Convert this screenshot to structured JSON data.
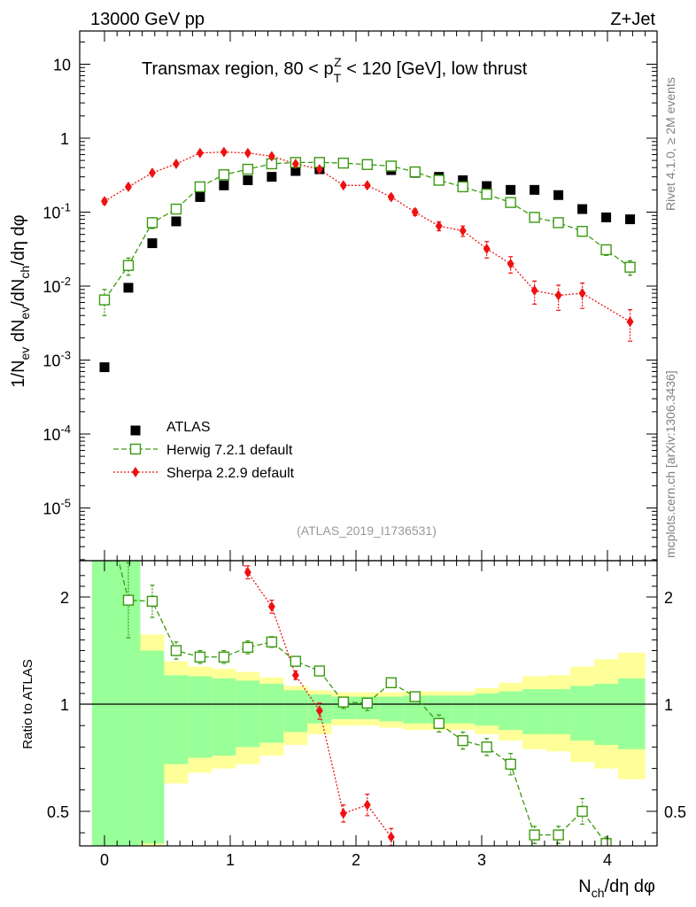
{
  "header": {
    "left": "13000 GeV pp",
    "right": "Z+Jet"
  },
  "plot_title": {
    "prefix": "Transmax region, 80 < p",
    "sup": "Z",
    "sub": "T",
    "suffix": " < 120 [GeV], low thrust"
  },
  "side_text": {
    "top": "Rivet 4.1.0, ≥ 2M events",
    "bottom": "mcplots.cern.ch [arXiv:1306.3436]"
  },
  "analysis_tag": "(ATLAS_2019_I1736531)",
  "colors": {
    "atlas": "#000000",
    "herwig": "#3a9a10",
    "sherpa": "#ee1111",
    "band_stat": "#99ff99",
    "band_total": "#ffff99"
  },
  "chart_data": [
    {
      "type": "scatter",
      "title": "Transmax region, 80 < pT^Z < 120 [GeV], low thrust",
      "ylabel": "1/N_ev dN_ev/dN_ch/dη dφ",
      "yscale": "log",
      "xlim": [
        -0.1,
        4.3
      ],
      "ylim": [
        3e-06,
        30
      ],
      "y_ticks": [
        "10^-5",
        "10^-4",
        "10^-3",
        "10^-2",
        "10^-1",
        "1",
        "10"
      ],
      "legend": [
        "ATLAS",
        "Herwig 7.2.1 default",
        "Sherpa 2.2.9 default"
      ],
      "legend_position": "lower-left",
      "series": [
        {
          "name": "ATLAS",
          "marker": "square",
          "x": [
            0.0,
            0.19,
            0.38,
            0.57,
            0.76,
            0.95,
            1.14,
            1.33,
            1.52,
            1.71,
            1.9,
            2.09,
            2.28,
            2.47,
            2.66,
            2.85,
            3.04,
            3.23,
            3.42,
            3.61,
            3.8,
            3.99,
            4.18
          ],
          "y": [
            0.0008,
            0.0095,
            0.038,
            0.075,
            0.16,
            0.23,
            0.27,
            0.3,
            0.36,
            0.38,
            0.46,
            0.44,
            0.37,
            0.34,
            0.3,
            0.27,
            0.225,
            0.2,
            0.2,
            0.17,
            0.11,
            0.085,
            0.08
          ]
        },
        {
          "name": "Herwig 7.2.1 default",
          "marker": "open-square",
          "line": "dashed",
          "x": [
            0.0,
            0.19,
            0.38,
            0.57,
            0.76,
            0.95,
            1.14,
            1.33,
            1.52,
            1.71,
            1.9,
            2.09,
            2.28,
            2.47,
            2.66,
            2.85,
            3.04,
            3.23,
            3.42,
            3.61,
            3.8,
            3.99,
            4.18
          ],
          "y": [
            0.0065,
            0.019,
            0.072,
            0.11,
            0.22,
            0.32,
            0.38,
            0.45,
            0.47,
            0.47,
            0.46,
            0.44,
            0.42,
            0.35,
            0.27,
            0.22,
            0.175,
            0.135,
            0.085,
            0.072,
            0.055,
            0.031,
            0.018
          ],
          "yerr": [
            0.0025,
            0.005,
            0.012,
            0.015,
            0.02,
            0.02,
            0.02,
            0.02,
            0.02,
            0.02,
            0.02,
            0.02,
            0.02,
            0.02,
            0.02,
            0.02,
            0.015,
            0.012,
            0.01,
            0.008,
            0.007,
            0.005,
            0.004
          ]
        },
        {
          "name": "Sherpa 2.2.9 default",
          "marker": "diamond",
          "line": "dotted",
          "x": [
            0.0,
            0.19,
            0.38,
            0.57,
            0.76,
            0.95,
            1.14,
            1.33,
            1.52,
            1.71,
            1.9,
            2.09,
            2.28,
            2.47,
            2.66,
            2.85,
            3.04,
            3.23,
            3.42,
            3.61,
            3.8,
            3.99,
            4.18
          ],
          "y": [
            0.14,
            0.22,
            0.34,
            0.45,
            0.63,
            0.65,
            0.63,
            0.57,
            0.45,
            0.38,
            0.23,
            0.23,
            0.16,
            0.1,
            0.065,
            0.056,
            0.032,
            0.02,
            0.0087,
            0.0075,
            0.008,
            null,
            0.0033
          ],
          "yerr": [
            0.012,
            0.015,
            0.02,
            0.02,
            0.03,
            0.03,
            0.03,
            0.03,
            0.02,
            0.02,
            0.015,
            0.015,
            0.012,
            0.01,
            0.009,
            0.009,
            0.008,
            0.005,
            0.003,
            0.0028,
            0.003,
            null,
            0.0015
          ]
        }
      ]
    },
    {
      "type": "scatter",
      "ylabel": "Ratio to ATLAS",
      "xlabel": "N_ch/dη dφ",
      "xlim": [
        -0.1,
        4.3
      ],
      "ylim": [
        0.35,
        2.3
      ],
      "x_ticks": [
        "0",
        "1",
        "2",
        "3",
        "4"
      ],
      "y_ticks": [
        "0.5",
        "1",
        "2"
      ],
      "bands": {
        "edges": [
          -0.1,
          0.095,
          0.285,
          0.475,
          0.665,
          0.855,
          1.045,
          1.235,
          1.425,
          1.615,
          1.805,
          1.995,
          2.185,
          2.375,
          2.565,
          2.755,
          2.945,
          3.135,
          3.325,
          3.515,
          3.705,
          3.895,
          4.085,
          4.3
        ],
        "stat_low": [
          0.2,
          0.2,
          0.35,
          0.72,
          0.75,
          0.76,
          0.8,
          0.82,
          0.87,
          0.91,
          0.93,
          0.93,
          0.92,
          0.91,
          0.91,
          0.91,
          0.9,
          0.88,
          0.86,
          0.86,
          0.83,
          0.81,
          0.79
        ],
        "stat_high": [
          2.5,
          2.4,
          1.5,
          1.27,
          1.26,
          1.24,
          1.22,
          1.19,
          1.13,
          1.09,
          1.07,
          1.07,
          1.07,
          1.08,
          1.08,
          1.08,
          1.1,
          1.12,
          1.14,
          1.14,
          1.17,
          1.19,
          1.24
        ],
        "total_low": [
          0.2,
          0.2,
          0.2,
          0.63,
          0.68,
          0.7,
          0.72,
          0.76,
          0.81,
          0.86,
          0.9,
          0.9,
          0.89,
          0.88,
          0.88,
          0.88,
          0.86,
          0.83,
          0.79,
          0.78,
          0.73,
          0.7,
          0.65
        ],
        "total_high": [
          2.5,
          2.4,
          1.65,
          1.4,
          1.35,
          1.33,
          1.3,
          1.25,
          1.17,
          1.13,
          1.11,
          1.11,
          1.11,
          1.12,
          1.12,
          1.12,
          1.15,
          1.2,
          1.26,
          1.27,
          1.35,
          1.42,
          1.48
        ]
      },
      "series": [
        {
          "name": "Herwig / ATLAS",
          "marker": "open-square",
          "line": "dashed",
          "x": [
            0.19,
            0.38,
            0.57,
            0.76,
            0.95,
            1.14,
            1.33,
            1.52,
            1.71,
            1.9,
            2.09,
            2.28,
            2.47,
            2.66,
            2.85,
            3.04,
            3.23,
            3.42,
            3.61,
            3.8,
            3.99
          ],
          "y": [
            1.97,
            1.96,
            1.5,
            1.44,
            1.44,
            1.53,
            1.58,
            1.4,
            1.31,
            1.02,
            1.01,
            1.2,
            1.07,
            0.91,
            0.83,
            0.8,
            0.72,
            0.39,
            0.39,
            0.5,
            0.35
          ],
          "yerr": [
            0.35,
            0.15,
            0.08,
            0.06,
            0.06,
            0.06,
            0.05,
            0.04,
            0.04,
            0.04,
            0.04,
            0.04,
            0.04,
            0.04,
            0.04,
            0.04,
            0.05,
            0.04,
            0.04,
            0.06,
            0.03
          ]
        },
        {
          "name": "Sherpa / ATLAS",
          "marker": "diamond",
          "line": "dotted",
          "x": [
            1.14,
            1.33,
            1.52,
            1.71,
            1.9,
            2.09,
            2.28
          ],
          "y": [
            2.23,
            1.91,
            1.27,
            0.97,
            0.49,
            0.53,
            0.38
          ],
          "yerr": [
            0.06,
            0.06,
            0.04,
            0.04,
            0.04,
            0.05,
            0.04
          ]
        }
      ]
    }
  ]
}
